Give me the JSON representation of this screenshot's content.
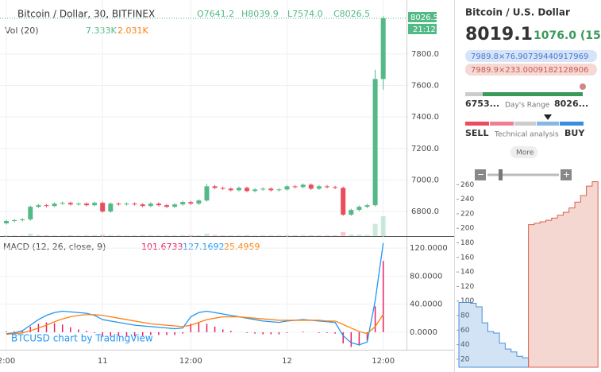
{
  "chart_data": [
    {
      "type": "candlestick",
      "title": "Bitcoin / Dollar, 30, BITFINEX",
      "ohlc_labels": [
        "O7641.2",
        "H8039.9",
        "L7574.0",
        "C8026.5"
      ],
      "x": [
        "2:00",
        null,
        null,
        null,
        null,
        null,
        null,
        null,
        null,
        null,
        null,
        null,
        "11",
        null,
        null,
        null,
        null,
        null,
        null,
        null,
        null,
        null,
        null,
        "12:00",
        null,
        null,
        null,
        null,
        null,
        null,
        null,
        null,
        null,
        null,
        null,
        "12",
        null,
        null,
        null,
        null,
        null,
        null,
        null,
        null,
        null,
        null,
        null,
        "12:00"
      ],
      "open": [
        6725,
        6740,
        6745,
        6750,
        6830,
        6840,
        6835,
        6850,
        6855,
        6845,
        6850,
        6840,
        6855,
        6800,
        6850,
        6845,
        6850,
        6845,
        6835,
        6850,
        6840,
        6830,
        6845,
        6860,
        6850,
        6870,
        6960,
        6950,
        6945,
        6935,
        6950,
        6930,
        6940,
        6945,
        6935,
        6940,
        6960,
        6955,
        6970,
        6945,
        6960,
        6955,
        6950,
        6780,
        6810,
        6830,
        6840,
        7641.2
      ],
      "high": [
        6748,
        6753,
        6758,
        6838,
        6848,
        6848,
        6858,
        6863,
        6863,
        6858,
        6858,
        6863,
        6863,
        6858,
        6858,
        6858,
        6858,
        6853,
        6858,
        6858,
        6848,
        6853,
        6868,
        6868,
        6878,
        6975,
        6968,
        6958,
        6953,
        6958,
        6958,
        6948,
        6953,
        6953,
        6948,
        6968,
        6968,
        6978,
        6978,
        6968,
        6968,
        6963,
        6958,
        6818,
        6838,
        6848,
        7700,
        8039.9
      ],
      "low": [
        6717,
        6732,
        6737,
        6742,
        6822,
        6827,
        6827,
        6842,
        6837,
        6837,
        6832,
        6832,
        6792,
        6792,
        6837,
        6837,
        6837,
        6827,
        6827,
        6832,
        6822,
        6822,
        6837,
        6842,
        6842,
        6862,
        6942,
        6937,
        6927,
        6927,
        6922,
        6922,
        6932,
        6927,
        6927,
        6932,
        6947,
        6947,
        6937,
        6937,
        6947,
        6942,
        6772,
        6772,
        6802,
        6822,
        6832,
        7574.0
      ],
      "close": [
        6740,
        6745,
        6750,
        6830,
        6840,
        6835,
        6850,
        6855,
        6845,
        6850,
        6840,
        6855,
        6800,
        6850,
        6845,
        6850,
        6845,
        6835,
        6850,
        6840,
        6830,
        6845,
        6860,
        6850,
        6870,
        6960,
        6950,
        6945,
        6935,
        6950,
        6930,
        6940,
        6945,
        6935,
        6940,
        6960,
        6955,
        6970,
        6945,
        6960,
        6955,
        6950,
        6780,
        6810,
        6830,
        6840,
        7641.2,
        8026.5
      ],
      "ylim": [
        6644,
        8067
      ],
      "yticks": [
        {
          "value": 6800,
          "label": "6800.0"
        },
        {
          "value": 7000,
          "label": "7000.0"
        },
        {
          "value": 7200,
          "label": "7200.0"
        },
        {
          "value": 7400,
          "label": "7400.0"
        },
        {
          "value": 7600,
          "label": "7600.0"
        },
        {
          "value": 7800,
          "label": "7800.0"
        }
      ],
      "up_color": "#53b987",
      "down_color": "#eb4d5c",
      "last_price_label": "8026.5",
      "countdown": "21:12",
      "volume": {
        "title": "Vol (20)",
        "labels": [
          "7.333K",
          "2.031K"
        ],
        "values": [
          300,
          250,
          200,
          900,
          400,
          300,
          250,
          200,
          300,
          200,
          250,
          300,
          500,
          350,
          250,
          200,
          200,
          250,
          300,
          200,
          250,
          300,
          350,
          400,
          300,
          900,
          400,
          300,
          250,
          300,
          350,
          250,
          300,
          250,
          300,
          400,
          300,
          350,
          300,
          300,
          250,
          300,
          1500,
          600,
          500,
          400,
          4500,
          7333
        ]
      },
      "macd": {
        "title": "MACD (12, 26, close, 9)",
        "labels": [
          "101.6733",
          "127.1692",
          "25.4959"
        ],
        "ylim": [
          -25,
          136
        ],
        "yticks": [
          {
            "value": 0,
            "label": "0.0000"
          },
          {
            "value": 40,
            "label": "40.0000"
          },
          {
            "value": 80,
            "label": "80.0000"
          },
          {
            "value": 120,
            "label": "120.0000"
          }
        ],
        "series": [
          {
            "type": "histogram",
            "color": "#e91e63",
            "values": [
              1,
              1,
              3,
              8,
              12,
              14,
              13,
              11,
              7,
              4,
              2,
              -1,
              -6,
              -6,
              -6,
              -6,
              -6,
              -5,
              -4,
              -4,
              -4,
              -4,
              -2,
              12,
              14,
              12,
              8,
              4,
              2,
              0,
              -1,
              -2,
              -3,
              -3,
              -3,
              -1,
              0,
              1,
              0,
              -1,
              -1,
              -2,
              -16,
              -21,
              -19,
              -12,
              37,
              101.6733
            ]
          },
          {
            "type": "line",
            "color": "#2196f3",
            "values": [
              -2,
              -1,
              2,
              10,
              18,
              24,
              28,
              30,
              29,
              28,
              27,
              24,
              18,
              16,
              14,
              12,
              10,
              9,
              8,
              7,
              6,
              5,
              6,
              22,
              28,
              30,
              28,
              26,
              24,
              22,
              20,
              18,
              16,
              15,
              14,
              16,
              17,
              18,
              17,
              16,
              15,
              14,
              -5,
              -15,
              -18,
              -14,
              45,
              127.1692
            ]
          },
          {
            "type": "line",
            "color": "#ff7f0e",
            "values": [
              -3,
              -2,
              -1,
              2,
              6,
              10,
              15,
              19,
              22,
              24,
              25,
              25,
              24,
              22,
              20,
              18,
              16,
              14,
              12,
              11,
              10,
              9,
              8,
              10,
              14,
              18,
              20,
              22,
              22,
              22,
              21,
              20,
              19,
              18,
              17,
              17,
              17,
              17,
              17,
              17,
              16,
              16,
              11,
              6,
              1,
              -2,
              8,
              25.4959
            ]
          }
        ]
      },
      "credit": "BTCUSD chart by TradingView"
    },
    {
      "type": "depth",
      "ylim": [
        9,
        268
      ],
      "yticks": [
        20,
        40,
        60,
        80,
        100,
        120,
        140,
        160,
        180,
        200,
        220,
        240,
        260
      ],
      "series": [
        {
          "color": "#4a90d9",
          "values": [
            98,
            98,
            97,
            92,
            70,
            58,
            56,
            42,
            34,
            30,
            24,
            22,
            null,
            null,
            null,
            null,
            null,
            null,
            null,
            null,
            null,
            null,
            null,
            null
          ]
        },
        {
          "color": "#d9604a",
          "values": [
            null,
            null,
            null,
            null,
            null,
            null,
            null,
            null,
            null,
            null,
            null,
            null,
            205,
            207,
            209,
            211,
            214,
            218,
            222,
            228,
            236,
            245,
            258,
            264
          ]
        }
      ]
    }
  ],
  "panel": {
    "title": "Bitcoin / U.S. Dollar",
    "price": "8019.1",
    "change": "1076.0 (15",
    "bid": "7989.8×76.90739440917969",
    "ask": "7989.9×233.0009182128906",
    "range_low": "6753...",
    "range_label": "Day's Range",
    "range_high": "8026...",
    "sell": "SELL",
    "technical": "Technical analysis",
    "buy": "BUY",
    "more": "More"
  }
}
